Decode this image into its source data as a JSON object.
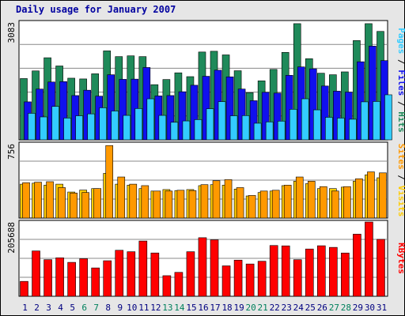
{
  "chart_data": {
    "type": "bar",
    "title": "Daily usage for January 2007",
    "categories": [
      "1",
      "2",
      "3",
      "4",
      "5",
      "6",
      "7",
      "8",
      "9",
      "10",
      "11",
      "12",
      "13",
      "14",
      "15",
      "16",
      "17",
      "18",
      "19",
      "20",
      "21",
      "22",
      "23",
      "24",
      "25",
      "26",
      "27",
      "28",
      "29",
      "30",
      "31"
    ],
    "weekend_days": [
      "6",
      "7",
      "13",
      "14",
      "20",
      "21",
      "27",
      "28"
    ],
    "colors": {
      "title": "#0000a0",
      "hits": "#1f8a5a",
      "files": "#1010ee",
      "pages": "#33ccff",
      "visits": "#ffcc00",
      "sites": "#ff9900",
      "kbytes": "#ff0000",
      "weekend_label": "#00805c",
      "weekday_label": "#000080",
      "gridline": "#888888",
      "panel_bg": "#ffffff",
      "frame_bg": "#e6e6e6"
    },
    "panels": [
      {
        "id": "hits-files-pages",
        "axis_max_label": "3083",
        "ylim": [
          0,
          3083
        ],
        "legend": [
          {
            "text": "Pages",
            "color": "#33ccff"
          },
          {
            "text": " / ",
            "color": "#000000"
          },
          {
            "text": "Files",
            "color": "#1010ee"
          },
          {
            "text": " / ",
            "color": "#000000"
          },
          {
            "text": "Hits",
            "color": "#1f8a5a"
          }
        ],
        "series": [
          {
            "name": "Hits",
            "color": "#1f8a5a",
            "values": [
              1605,
              1805,
              2150,
              1935,
              1615,
              1595,
              1730,
              2330,
              2180,
              2200,
              2180,
              1445,
              1580,
              1755,
              1655,
              2300,
              2320,
              2225,
              1810,
              1235,
              1545,
              1845,
              2290,
              3043,
              2125,
              1745,
              1705,
              1780,
              2600,
              3043,
              2840
            ]
          },
          {
            "name": "Files",
            "color": "#1010ee",
            "values": [
              995,
              1330,
              1515,
              1525,
              1160,
              1300,
              1145,
              1705,
              1585,
              1590,
              1895,
              1150,
              1160,
              1260,
              1430,
              1665,
              1825,
              1650,
              1330,
              1025,
              1245,
              1225,
              1690,
              1910,
              1860,
              1410,
              1275,
              1250,
              2045,
              2455,
              2075
            ]
          },
          {
            "name": "Pages",
            "color": "#33ccff",
            "values": [
              695,
              600,
              875,
              570,
              630,
              680,
              840,
              755,
              640,
              820,
              1075,
              640,
              460,
              495,
              530,
              815,
              1000,
              630,
              635,
              435,
              470,
              490,
              800,
              1075,
              785,
              590,
              570,
              540,
              995,
              1005,
              1180
            ]
          }
        ]
      },
      {
        "id": "visits-sites",
        "axis_max_label": "756",
        "ylim": [
          0,
          756
        ],
        "legend": [
          {
            "text": "Sites",
            "color": "#ff9900"
          },
          {
            "text": " / ",
            "color": "#000000"
          },
          {
            "text": "Visits",
            "color": "#ffcc00"
          }
        ],
        "series": [
          {
            "name": "Visits",
            "color": "#ffcc00",
            "values": [
              345,
              355,
              335,
              345,
              265,
              285,
              300,
              455,
              345,
              335,
              300,
              275,
              290,
              280,
              290,
              330,
              340,
              335,
              295,
              225,
              260,
              275,
              330,
              375,
              350,
              300,
              300,
              315,
              375,
              440,
              410
            ]
          },
          {
            "name": "Sites",
            "color": "#ff9900",
            "values": [
              360,
              365,
              370,
              310,
              255,
              260,
              300,
              738,
              418,
              345,
              330,
              275,
              275,
              283,
              280,
              340,
              380,
              391,
              310,
              230,
              275,
              283,
              335,
              418,
              375,
              320,
              275,
              320,
              400,
              470,
              460
            ]
          }
        ]
      },
      {
        "id": "kbytes",
        "axis_max_label": "205688",
        "ylim": [
          0,
          205688
        ],
        "legend": [
          {
            "text": "KBytes",
            "color": "#ff0000"
          }
        ],
        "series": [
          {
            "name": "KBytes",
            "color": "#ff0000",
            "values": [
              41200,
              125500,
              101400,
              106500,
              93900,
              104000,
              78500,
              98400,
              127400,
              123400,
              153000,
              119900,
              57000,
              66200,
              123400,
              162200,
              156400,
              84200,
              100100,
              89400,
              97000,
              140600,
              139600,
              101300,
              130900,
              139900,
              135400,
              119800,
              172000,
              211000,
              157600
            ]
          }
        ]
      }
    ]
  }
}
